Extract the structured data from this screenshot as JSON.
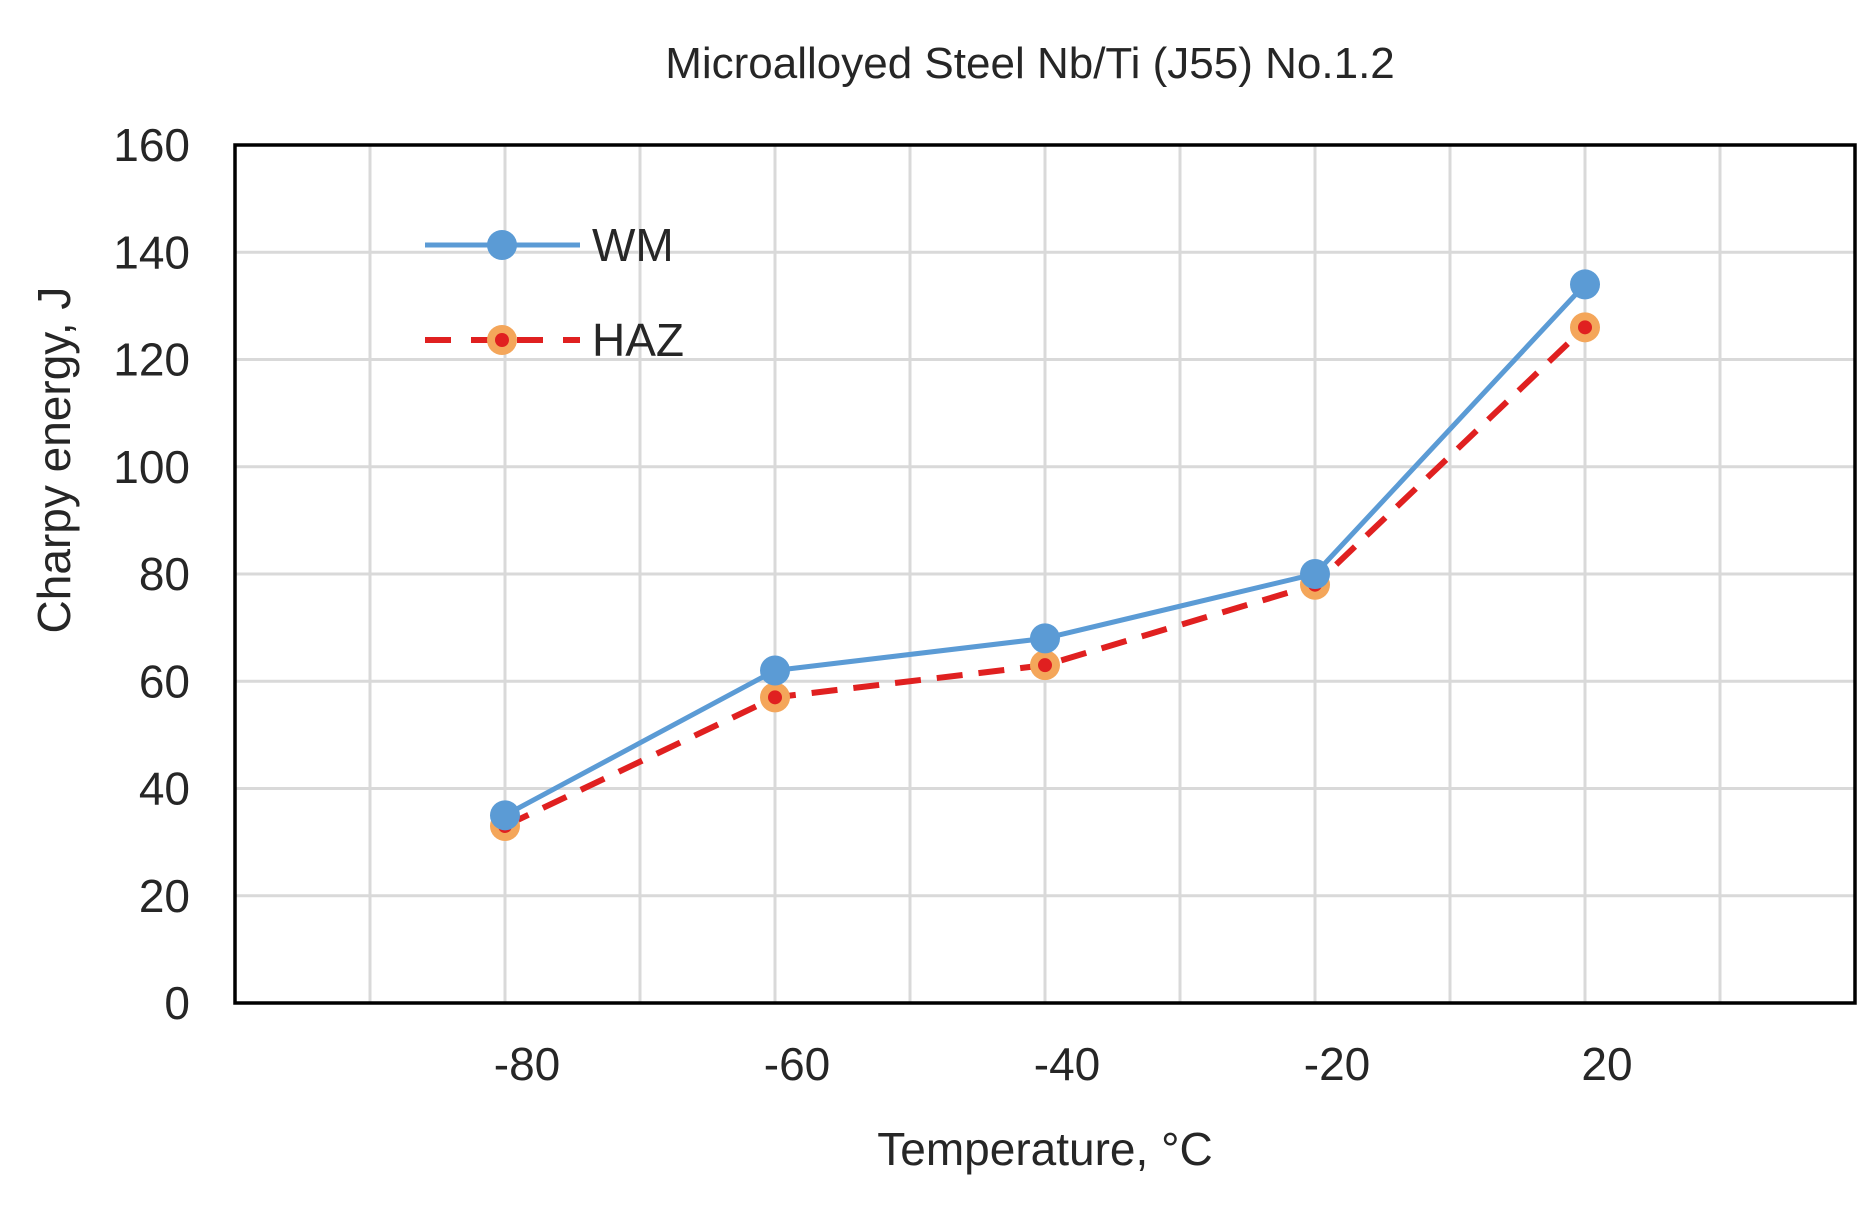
{
  "chart_data": {
    "type": "line",
    "title": "Microalloyed Steel Nb/Ti (J55) No.1.2",
    "xlabel": "Temperature, °C",
    "ylabel": "Charpy energy, J",
    "categories": [
      "-80",
      "-60",
      "-40",
      "-20",
      "20"
    ],
    "ylim": [
      0,
      160
    ],
    "yticks": [
      "0",
      "20",
      "40",
      "60",
      "80",
      "100",
      "120",
      "140",
      "160"
    ],
    "grid": true,
    "legend_position": "top-left",
    "series": [
      {
        "name": "WM",
        "values": [
          35,
          62,
          68,
          80,
          134
        ],
        "line_style": "solid",
        "line_color": "#5b9bd5",
        "marker_color": "#5b9bd5",
        "marker_center_color": "#5b9bd5"
      },
      {
        "name": "HAZ",
        "values": [
          33,
          57,
          63,
          78,
          126
        ],
        "line_style": "dashed",
        "line_color": "#e02020",
        "marker_color": "#f4a65a",
        "marker_center_color": "#e02020"
      }
    ]
  }
}
